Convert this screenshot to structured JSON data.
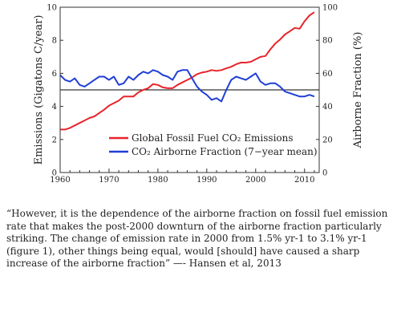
{
  "chart_data": {
    "type": "line",
    "x_ticks": [
      "1960",
      "1970",
      "1980",
      "1990",
      "2000",
      "2010"
    ],
    "xlim": [
      1960,
      2013
    ],
    "y_left": {
      "label": "Emissions (Gigatons C/year)",
      "ticks": [
        "0",
        "2",
        "4",
        "6",
        "8",
        "10"
      ],
      "lim": [
        0,
        10
      ]
    },
    "y_right": {
      "label": "Airborne Fraction (%)",
      "ticks": [
        "0",
        "20",
        "40",
        "60",
        "80",
        "100"
      ],
      "lim": [
        0,
        100
      ]
    },
    "reference_line": {
      "axis": "right",
      "value": 50,
      "color": "#000000"
    },
    "legend_position": "center-right",
    "series": [
      {
        "name": "Global Fossil Fuel CO₂ Emissions",
        "axis": "left",
        "color": "#e8242a",
        "x": [
          1960,
          1961,
          1962,
          1963,
          1964,
          1965,
          1966,
          1967,
          1968,
          1969,
          1970,
          1971,
          1972,
          1973,
          1974,
          1975,
          1976,
          1977,
          1978,
          1979,
          1980,
          1981,
          1982,
          1983,
          1984,
          1985,
          1986,
          1987,
          1988,
          1989,
          1990,
          1991,
          1992,
          1993,
          1994,
          1995,
          1996,
          1997,
          1998,
          1999,
          2000,
          2001,
          2002,
          2003,
          2004,
          2005,
          2006,
          2007,
          2008,
          2009,
          2010,
          2011,
          2012
        ],
        "values": [
          2.6,
          2.6,
          2.7,
          2.85,
          3.0,
          3.15,
          3.3,
          3.4,
          3.6,
          3.8,
          4.05,
          4.2,
          4.35,
          4.6,
          4.6,
          4.6,
          4.85,
          5.0,
          5.1,
          5.35,
          5.3,
          5.15,
          5.1,
          5.1,
          5.3,
          5.45,
          5.6,
          5.75,
          5.95,
          6.05,
          6.1,
          6.2,
          6.15,
          6.2,
          6.3,
          6.4,
          6.55,
          6.65,
          6.65,
          6.7,
          6.85,
          7.0,
          7.05,
          7.45,
          7.8,
          8.05,
          8.35,
          8.55,
          8.75,
          8.7,
          9.15,
          9.5,
          9.7
        ]
      },
      {
        "name": "CO₂ Airborne Fraction (7−year mean)",
        "axis": "right",
        "color": "#1f3fd6",
        "x": [
          1960,
          1961,
          1962,
          1963,
          1964,
          1965,
          1966,
          1967,
          1968,
          1969,
          1970,
          1971,
          1972,
          1973,
          1974,
          1975,
          1976,
          1977,
          1978,
          1979,
          1980,
          1981,
          1982,
          1983,
          1984,
          1985,
          1986,
          1987,
          1988,
          1989,
          1990,
          1991,
          1992,
          1993,
          1994,
          1995,
          1996,
          1997,
          1998,
          1999,
          2000,
          2001,
          2002,
          2003,
          2004,
          2005,
          2006,
          2007,
          2008,
          2009,
          2010,
          2011,
          2012
        ],
        "values": [
          59,
          56,
          55,
          57,
          53,
          52,
          54,
          56,
          58,
          58,
          56,
          58,
          53,
          54,
          58,
          56,
          59,
          61,
          60,
          62,
          61,
          59,
          58,
          56,
          61,
          62,
          62,
          57,
          52,
          49,
          47,
          44,
          45,
          43,
          50,
          56,
          58,
          57,
          56,
          58,
          60,
          55,
          53,
          54,
          54,
          52,
          49,
          48,
          47,
          46,
          46,
          47,
          46
        ]
      }
    ]
  },
  "quote": {
    "text": "“However, it is the dependence of the airborne fraction on fossil fuel emission rate that makes the post-2000 downturn of the airborne fraction particularly striking. The change of emission rate in 2000 from 1.5% yr-1 to 3.1% yr-1 (figure 1), other things being equal, would [should] have caused a sharp increase of the airborne fraction” —- Hansen et al, 2013"
  }
}
